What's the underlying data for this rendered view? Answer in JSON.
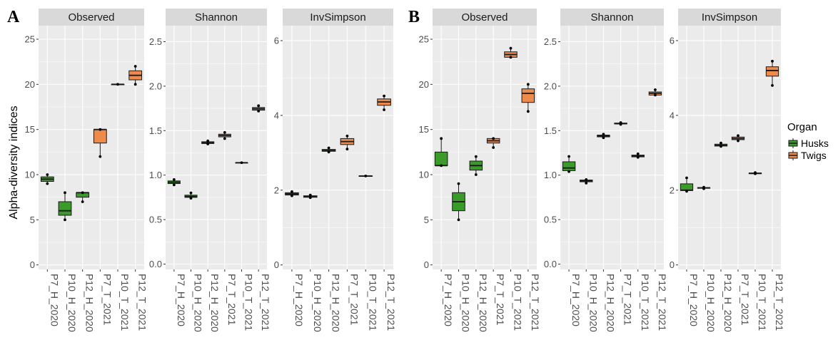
{
  "figure": {
    "ylabel": "Alpha-diversity indices",
    "legend": {
      "title": "Organ",
      "entries": [
        {
          "label": "Husks",
          "color": "#3a9a2a"
        },
        {
          "label": "Twigs",
          "color": "#ee8a4c"
        }
      ]
    },
    "colors": {
      "Husks": "#3a9a2a",
      "Twigs": "#ee8a4c",
      "panel_bg": "#ebebeb",
      "strip_bg": "#d9d9d9",
      "grid": "#ffffff"
    }
  },
  "chart_data": [
    {
      "type": "boxplot",
      "panel": "A",
      "facet": "Observed",
      "categories": [
        "P7_H_2020",
        "P10_H_2020",
        "P12_H_2020",
        "P7_T_2021",
        "P10_T_2021",
        "P12_T_2021"
      ],
      "organ": [
        "Husks",
        "Husks",
        "Husks",
        "Twigs",
        "Twigs",
        "Twigs"
      ],
      "ylim": [
        -0.5,
        26.5
      ],
      "yticks": [
        0,
        5,
        10,
        15,
        20,
        25
      ],
      "ytick_labels": [
        "0",
        "5",
        "10",
        "15",
        "20",
        "25"
      ],
      "boxes": [
        {
          "min": 9,
          "q1": 9.25,
          "median": 9.5,
          "q3": 9.75,
          "max": 10,
          "points": [
            9,
            10
          ]
        },
        {
          "min": 5,
          "q1": 5.5,
          "median": 6,
          "q3": 7,
          "max": 8,
          "points": [
            5,
            8
          ]
        },
        {
          "min": 7,
          "q1": 7.5,
          "median": 8,
          "q3": 8,
          "max": 8,
          "points": [
            7,
            8
          ]
        },
        {
          "min": 12,
          "q1": 13.5,
          "median": 15,
          "q3": 15,
          "max": 15,
          "points": [
            12,
            15
          ]
        },
        {
          "min": 20,
          "q1": 20,
          "median": 20,
          "q3": 20,
          "max": 20,
          "points": [
            20
          ]
        },
        {
          "min": 20,
          "q1": 20.5,
          "median": 21,
          "q3": 21.5,
          "max": 22,
          "points": [
            20,
            22
          ]
        }
      ]
    },
    {
      "type": "boxplot",
      "panel": "A",
      "facet": "Shannon",
      "categories": [
        "P7_H_2020",
        "P10_H_2020",
        "P12_H_2020",
        "P7_T_2021",
        "P10_T_2021",
        "P12_T_2021"
      ],
      "organ": [
        "Husks",
        "Husks",
        "Husks",
        "Twigs",
        "Twigs",
        "Twigs"
      ],
      "ylim": [
        -0.06,
        2.68
      ],
      "yticks": [
        0,
        0.5,
        1,
        1.5,
        2,
        2.5
      ],
      "ytick_labels": [
        "0.0",
        "0.5",
        "1.0",
        "1.5",
        "2.0",
        "2.5"
      ],
      "boxes": [
        {
          "min": 0.89,
          "q1": 0.905,
          "median": 0.92,
          "q3": 0.935,
          "max": 0.95,
          "points": [
            0.89,
            0.95
          ]
        },
        {
          "min": 0.74,
          "q1": 0.75,
          "median": 0.76,
          "q3": 0.775,
          "max": 0.8,
          "points": [
            0.74,
            0.8
          ]
        },
        {
          "min": 1.35,
          "q1": 1.355,
          "median": 1.365,
          "q3": 1.375,
          "max": 1.385,
          "points": [
            1.35,
            1.385
          ]
        },
        {
          "min": 1.41,
          "q1": 1.43,
          "median": 1.445,
          "q3": 1.46,
          "max": 1.48,
          "points": [
            1.41,
            1.48
          ]
        },
        {
          "min": 1.14,
          "q1": 1.14,
          "median": 1.14,
          "q3": 1.14,
          "max": 1.14,
          "points": [
            1.14
          ]
        },
        {
          "min": 1.72,
          "q1": 1.73,
          "median": 1.745,
          "q3": 1.76,
          "max": 1.78,
          "points": [
            1.72,
            1.78
          ]
        }
      ]
    },
    {
      "type": "boxplot",
      "panel": "A",
      "facet": "InvSimpson",
      "categories": [
        "P7_H_2020",
        "P10_H_2020",
        "P12_H_2020",
        "P7_T_2021",
        "P10_T_2021",
        "P12_T_2021"
      ],
      "organ": [
        "Husks",
        "Husks",
        "Husks",
        "Twigs",
        "Twigs",
        "Twigs"
      ],
      "ylim": [
        -0.12,
        6.4
      ],
      "yticks": [
        0,
        2,
        4,
        6
      ],
      "ytick_labels": [
        "0",
        "2",
        "4",
        "6"
      ],
      "boxes": [
        {
          "min": 1.85,
          "q1": 1.87,
          "median": 1.9,
          "q3": 1.93,
          "max": 1.96,
          "points": [
            1.85,
            1.96
          ]
        },
        {
          "min": 1.8,
          "q1": 1.81,
          "median": 1.83,
          "q3": 1.85,
          "max": 1.87,
          "points": [
            1.8,
            1.87
          ]
        },
        {
          "min": 3.02,
          "q1": 3.04,
          "median": 3.06,
          "q3": 3.09,
          "max": 3.13,
          "points": [
            3.02,
            3.13
          ]
        },
        {
          "min": 3.1,
          "q1": 3.22,
          "median": 3.3,
          "q3": 3.38,
          "max": 3.45,
          "points": [
            3.1,
            3.45
          ]
        },
        {
          "min": 2.38,
          "q1": 2.38,
          "median": 2.38,
          "q3": 2.38,
          "max": 2.38,
          "points": [
            2.38
          ]
        },
        {
          "min": 4.15,
          "q1": 4.27,
          "median": 4.36,
          "q3": 4.44,
          "max": 4.52,
          "points": [
            4.15,
            4.52
          ]
        }
      ]
    },
    {
      "type": "boxplot",
      "panel": "B",
      "facet": "Observed",
      "categories": [
        "P7_H_2020",
        "P10_H_2020",
        "P12_H_2020",
        "P7_T_2021",
        "P10_T_2021",
        "P12_T_2021"
      ],
      "organ": [
        "Husks",
        "Husks",
        "Husks",
        "Twigs",
        "Twigs",
        "Twigs"
      ],
      "ylim": [
        -0.5,
        26.5
      ],
      "yticks": [
        0,
        5,
        10,
        15,
        20,
        25
      ],
      "ytick_labels": [
        "0",
        "5",
        "10",
        "15",
        "20",
        "25"
      ],
      "boxes": [
        {
          "min": 11,
          "q1": 11,
          "median": 11,
          "q3": 12.5,
          "max": 14,
          "points": [
            11,
            14
          ]
        },
        {
          "min": 5,
          "q1": 6,
          "median": 7,
          "q3": 8,
          "max": 9,
          "points": [
            5,
            9
          ]
        },
        {
          "min": 10,
          "q1": 10.5,
          "median": 11,
          "q3": 11.5,
          "max": 12,
          "points": [
            10,
            12
          ]
        },
        {
          "min": 13,
          "q1": 13.5,
          "median": 13.75,
          "q3": 14,
          "max": 14,
          "points": [
            13,
            14
          ]
        },
        {
          "min": 23,
          "q1": 23,
          "median": 23.3,
          "q3": 23.6,
          "max": 24,
          "points": [
            23,
            24
          ]
        },
        {
          "min": 17,
          "q1": 18,
          "median": 19,
          "q3": 19.5,
          "max": 20,
          "points": [
            17,
            20
          ]
        }
      ]
    },
    {
      "type": "boxplot",
      "panel": "B",
      "facet": "Shannon",
      "categories": [
        "P7_H_2020",
        "P10_H_2020",
        "P12_H_2020",
        "P7_T_2021",
        "P10_T_2021",
        "P12_T_2021"
      ],
      "organ": [
        "Husks",
        "Husks",
        "Husks",
        "Twigs",
        "Twigs",
        "Twigs"
      ],
      "ylim": [
        -0.06,
        2.68
      ],
      "yticks": [
        0,
        0.5,
        1,
        1.5,
        2,
        2.5
      ],
      "ytick_labels": [
        "0.0",
        "0.5",
        "1.0",
        "1.5",
        "2.0",
        "2.5"
      ],
      "boxes": [
        {
          "min": 1.04,
          "q1": 1.05,
          "median": 1.08,
          "q3": 1.15,
          "max": 1.21,
          "points": [
            1.04,
            1.21
          ]
        },
        {
          "min": 0.91,
          "q1": 0.925,
          "median": 0.935,
          "q3": 0.945,
          "max": 0.95,
          "points": [
            0.91,
            0.95
          ]
        },
        {
          "min": 1.42,
          "q1": 1.43,
          "median": 1.44,
          "q3": 1.45,
          "max": 1.46,
          "points": [
            1.42,
            1.46
          ]
        },
        {
          "min": 1.57,
          "q1": 1.575,
          "median": 1.58,
          "q3": 1.585,
          "max": 1.59,
          "points": [
            1.57,
            1.59
          ]
        },
        {
          "min": 1.2,
          "q1": 1.205,
          "median": 1.215,
          "q3": 1.225,
          "max": 1.24,
          "points": [
            1.2,
            1.24
          ]
        },
        {
          "min": 1.9,
          "q1": 1.9,
          "median": 1.92,
          "q3": 1.935,
          "max": 1.96,
          "points": [
            1.9,
            1.96
          ]
        }
      ]
    },
    {
      "type": "boxplot",
      "panel": "B",
      "facet": "InvSimpson",
      "categories": [
        "P7_H_2020",
        "P10_H_2020",
        "P12_H_2020",
        "P7_T_2021",
        "P10_T_2021",
        "P12_T_2021"
      ],
      "organ": [
        "Husks",
        "Husks",
        "Husks",
        "Twigs",
        "Twigs",
        "Twigs"
      ],
      "ylim": [
        -0.12,
        6.4
      ],
      "yticks": [
        0,
        2,
        4,
        6
      ],
      "ytick_labels": [
        "0",
        "2",
        "4",
        "6"
      ],
      "boxes": [
        {
          "min": 1.97,
          "q1": 1.99,
          "median": 2.0,
          "q3": 2.17,
          "max": 2.33,
          "points": [
            1.97,
            2.33
          ]
        },
        {
          "min": 2.04,
          "q1": 2.05,
          "median": 2.06,
          "q3": 2.07,
          "max": 2.08,
          "points": [
            2.04,
            2.08
          ]
        },
        {
          "min": 3.17,
          "q1": 3.18,
          "median": 3.2,
          "q3": 3.23,
          "max": 3.26,
          "points": [
            3.17,
            3.26
          ]
        },
        {
          "min": 3.32,
          "q1": 3.35,
          "median": 3.38,
          "q3": 3.42,
          "max": 3.46,
          "points": [
            3.32,
            3.46
          ]
        },
        {
          "min": 2.44,
          "q1": 2.44,
          "median": 2.45,
          "q3": 2.46,
          "max": 2.47,
          "points": [
            2.44,
            2.47
          ]
        },
        {
          "min": 4.8,
          "q1": 5.05,
          "median": 5.2,
          "q3": 5.3,
          "max": 5.45,
          "points": [
            4.8,
            5.45
          ]
        }
      ]
    }
  ]
}
